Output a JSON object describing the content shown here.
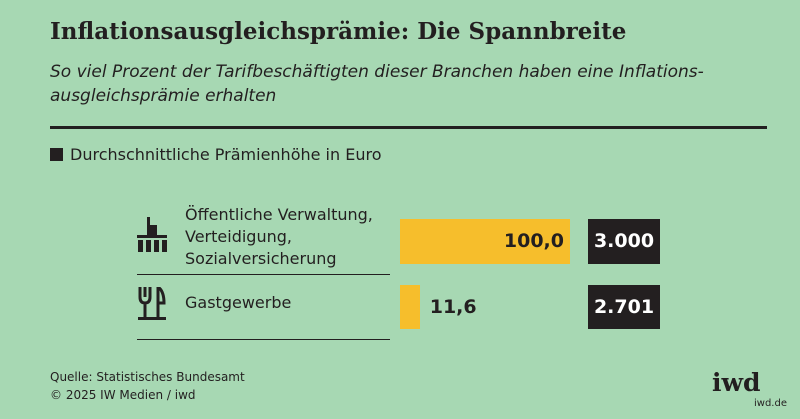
{
  "chart_data": {
    "type": "bar",
    "title": "Inflationsausgleichsprämie: Die Spannbreite",
    "subtitle": "So viel Prozent der Tarifbeschäftigten dieser Branchen haben eine Inflations-ausgleichsprämie erhalten",
    "categories": [
      "Öffentliche Verwaltung, Verteidigung, Sozialversicherung",
      "Gastgewerbe"
    ],
    "values": [
      100,
      11.6
    ],
    "value_labels": [
      "100,0",
      "11,6"
    ],
    "color": "#f6be2c",
    "xlim": [
      0,
      100
    ],
    "amounts": {
      "name": "Durchschnittliche Prämienhöhe in Euro",
      "color": "#231f20",
      "values": [
        3000,
        2701
      ],
      "value_labels": [
        "3.000",
        "2.701"
      ]
    },
    "source": "Quelle: Statistisches Bundesamt",
    "copyright": "© 2025 IW Medien / iwd",
    "logo": "iwd",
    "url": "iwd.de"
  }
}
